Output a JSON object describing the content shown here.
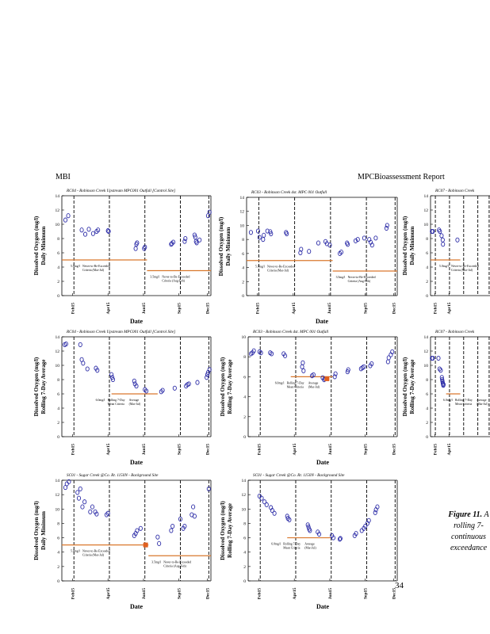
{
  "header": {
    "left": "MBI",
    "right": "MPCBioassessment Report"
  },
  "page_number": "34",
  "caption": {
    "figure_label": "Figure 11.",
    "lines": [
      "A",
      "rolling 7-",
      "continuous",
      "exceedance"
    ]
  },
  "chart_data": [
    {
      "type": "scatter",
      "title": "RC04 - Robinson Creek Upstream MPC001 Outfall [Control Site]",
      "ylabel_line1": "Dissolved Oxygen (mg/l)",
      "ylabel_line2": "Daily Minimum",
      "xlabel": "Date",
      "x_tick_labels": [
        "Feb15",
        "Apr15",
        "Jun15",
        "Sep15",
        "Dec15"
      ],
      "ylim": [
        0,
        14
      ],
      "y_ticks": [
        "0",
        "2",
        "4",
        "6",
        "8",
        "10",
        "12",
        "14"
      ],
      "series": [
        {
          "name": "DO",
          "x": [
            0.5,
            0.9,
            2.8,
            3.3,
            3.8,
            4.4,
            4.9,
            5.1,
            6.5,
            6.6,
            10.4,
            10.5,
            10.6,
            11.6,
            11.7,
            15.4,
            15.5,
            15.7,
            17.3,
            17.4,
            18.7,
            18.8,
            18.9,
            19.0,
            19.4,
            20.6,
            20.8,
            20.9
          ],
          "y": [
            10.6,
            11.2,
            9.2,
            8.6,
            9.3,
            8.7,
            9.0,
            9.2,
            9.1,
            9.0,
            6.6,
            7.2,
            7.4,
            6.6,
            6.8,
            7.2,
            7.3,
            7.5,
            7.6,
            8.0,
            8.5,
            8.2,
            7.6,
            7.4,
            7.8,
            11.2,
            11.7,
            11.9
          ]
        }
      ],
      "threshold_lines": [
        {
          "x": [
            0.0,
            12.0
          ],
          "y": 5.0,
          "label_line1": "5.0mg/l",
          "label_line2": "Never-to-Be-Exceeded",
          "label_line3": "Criteria (Mar-Jul)"
        },
        {
          "x": [
            12.0,
            21.0
          ],
          "y": 3.5,
          "label_line1": "3.5mg/l",
          "label_line2": "Never-to-Be-Exceeded",
          "label_line3": "Criteria (Aug-Feb)"
        }
      ],
      "flags": []
    },
    {
      "type": "scatter",
      "title": "RC03 - Robinson Creek dst. MPC 001 Outfall",
      "ylabel_line1": "Dissolved Oxygen (mg/l)",
      "ylabel_line2": "Daily Minimum",
      "xlabel": "Date",
      "x_tick_labels": [
        "Feb15",
        "Apr15",
        "Jun15",
        "Sep15",
        "Dec15"
      ],
      "ylim": [
        0,
        14
      ],
      "y_ticks": [
        "0",
        "2",
        "4",
        "6",
        "8",
        "10",
        "12",
        "14"
      ],
      "series": [
        {
          "name": "DO",
          "x": [
            0.6,
            1.6,
            1.8,
            2.3,
            2.4,
            2.9,
            3.3,
            3.4,
            5.5,
            5.6,
            7.5,
            7.6,
            8.7,
            10.0,
            11.0,
            11.2,
            11.6,
            13.0,
            13.2,
            14.0,
            14.1,
            15.2,
            15.5,
            16.4,
            17.1,
            17.3,
            17.5,
            18.0,
            19.5,
            19.6
          ],
          "y": [
            9.0,
            9.2,
            8.3,
            8.0,
            8.6,
            9.2,
            9.1,
            8.8,
            9.0,
            8.8,
            6.1,
            6.6,
            6.3,
            7.5,
            7.7,
            7.4,
            7.2,
            6.0,
            6.2,
            7.5,
            7.3,
            7.8,
            8.0,
            8.2,
            8.0,
            7.6,
            7.2,
            8.2,
            9.6,
            10.0
          ],
          "note": "approximate"
        }
      ],
      "threshold_lines": [
        {
          "x": [
            0.0,
            12.0
          ],
          "y": 5.0,
          "label_line1": "5.0mg/l",
          "label_line2": "Never-to-Be-Exceeded",
          "label_line3": "Criteria (Mar-Jul)"
        },
        {
          "x": [
            12.0,
            21.0
          ],
          "y": 3.5,
          "label_line1": "3.5mg/l",
          "label_line2": "Never-to-Be-Exceeded",
          "label_line3": "Criteria (Aug-Feb)"
        }
      ],
      "flags": []
    },
    {
      "type": "scatter",
      "title": "RC07 - Robinson Creek",
      "ylabel_line1": "Dissolved Oxygen (mg/l)",
      "ylabel_line2": "Daily Minimum",
      "xlabel": "",
      "x_tick_labels": [
        "Feb15",
        "Apr15"
      ],
      "ylim": [
        0,
        14
      ],
      "y_ticks": [
        "0",
        "2",
        "4",
        "6",
        "8",
        "10",
        "12",
        "14"
      ],
      "series": [
        {
          "name": "DO",
          "x": [
            0.5,
            0.8,
            3.0,
            3.3,
            3.9,
            4.3,
            4.4,
            9.5
          ],
          "y": [
            9.0,
            9.0,
            9.2,
            9.0,
            8.4,
            7.8,
            7.2,
            7.8
          ]
        }
      ],
      "threshold_lines": [
        {
          "x": [
            0.0,
            10.5
          ],
          "y": 5.0,
          "label_line1": "5.0mg/l",
          "label_line2": "Never-to-Be-Exceeded",
          "label_line3": "Criteria (Mar-Jul)"
        }
      ],
      "flags": []
    },
    {
      "type": "scatter",
      "title": "RC04 - Robinson Creek Upstream MPC001 Outfall [Control Site]",
      "ylabel_line1": "Dissolved Oxygen (mg/l)",
      "ylabel_line2": "Rolling 7-Day Average",
      "xlabel": "Date",
      "x_tick_labels": [
        "Feb15",
        "Apr15",
        "Jun15",
        "Sep15",
        "Dec15"
      ],
      "ylim": [
        0,
        14
      ],
      "y_ticks": [
        "0",
        "2",
        "4",
        "6",
        "8",
        "10",
        "12",
        "14"
      ],
      "series": [
        {
          "name": "DO",
          "x": [
            0.4,
            0.6,
            2.6,
            2.8,
            3.0,
            3.6,
            4.8,
            5.0,
            7.0,
            7.1,
            7.2,
            10.2,
            10.3,
            10.5,
            11.7,
            11.9,
            14.0,
            14.2,
            15.9,
            17.5,
            17.7,
            17.9,
            19.1,
            20.4,
            20.5,
            20.6,
            20.8
          ],
          "y": [
            12.9,
            13.0,
            12.9,
            10.8,
            10.3,
            9.5,
            9.6,
            9.3,
            8.7,
            8.3,
            8.0,
            7.8,
            7.4,
            7.1,
            6.6,
            6.4,
            6.3,
            6.5,
            6.8,
            7.1,
            7.3,
            7.4,
            7.6,
            8.3,
            8.7,
            9.0,
            9.4
          ]
        }
      ],
      "threshold_lines": [
        {
          "x": [
            7.0,
            13.5
          ],
          "y": 6.0,
          "label_line1": "6.0mg/l",
          "label_line2": "Rolling 7-Day",
          "label_line3": "Mean Criteria",
          "label2_line1": "Average",
          "label2_line2": "(Mar-Jul)"
        }
      ],
      "flags": []
    },
    {
      "type": "scatter",
      "title": "RC03 - Robinson Creek dst. MPC 001 Outfall",
      "ylabel_line1": "Dissolved Oxygen (mg/l)",
      "ylabel_line2": "Rolling 7-Day Average",
      "xlabel": "Date",
      "x_tick_labels": [
        "Feb15",
        "Apr15",
        "Jun15",
        "Sep15",
        "Dec15"
      ],
      "ylim": [
        0,
        10
      ],
      "y_ticks": [
        "0",
        "2",
        "4",
        "6",
        "8",
        "10"
      ],
      "series": [
        {
          "name": "DO",
          "x": [
            0.4,
            0.6,
            0.8,
            1.6,
            1.8,
            3.1,
            3.3,
            5.0,
            5.2,
            7.6,
            7.7,
            7.8,
            9.0,
            9.2,
            10.5,
            10.7,
            10.8,
            12.2,
            12.3,
            14.0,
            14.1,
            15.9,
            16.1,
            16.3,
            17.2,
            17.4,
            19.7,
            19.8,
            20.1,
            20.3
          ],
          "y": [
            8.3,
            8.4,
            8.6,
            8.5,
            8.4,
            8.4,
            8.3,
            8.3,
            8.1,
            7.0,
            7.4,
            6.6,
            6.1,
            6.2,
            5.9,
            5.7,
            5.8,
            6.0,
            6.3,
            6.5,
            6.7,
            6.8,
            6.9,
            7.0,
            7.1,
            7.3,
            7.5,
            7.9,
            8.2,
            8.5
          ]
        }
      ],
      "threshold_lines": [
        {
          "x": [
            6.0,
            12.0
          ],
          "y": 6.0,
          "label_line1": "6.0mg/l",
          "label_line2": "Rolling 7-Day",
          "label_line3": "Mean Criteria",
          "label2_line1": "Average",
          "label2_line2": "(Mar-Jul)"
        }
      ],
      "flags": [
        {
          "x": 11.1,
          "y": 5.8,
          "color": "#e06020"
        }
      ]
    },
    {
      "type": "scatter",
      "title": "RC07 - Robinson Creek",
      "ylabel_line1": "Dissolved Oxygen (mg/l)",
      "ylabel_line2": "Rolling 7-Day Average",
      "xlabel": "",
      "x_tick_labels": [
        "Feb15",
        "Apr15"
      ],
      "ylim": [
        0,
        14
      ],
      "y_ticks": [
        "0",
        "2",
        "4",
        "6",
        "8",
        "10",
        "12",
        "14"
      ],
      "series": [
        {
          "name": "DO",
          "x": [
            0.5,
            0.8,
            2.8,
            3.2,
            3.6,
            4.0,
            4.1,
            4.2,
            4.3,
            4.4,
            4.5,
            4.6
          ],
          "y": [
            11.0,
            11.0,
            11.0,
            9.5,
            9.3,
            8.3,
            8.0,
            7.8,
            7.6,
            7.4,
            7.2,
            7.3
          ]
        }
      ],
      "threshold_lines": [
        {
          "x": [
            5.5,
            10.5
          ],
          "y": 6.0,
          "label_line1": "6.0mg/l",
          "label_line2": "Rolling 7-Day",
          "label_line3": "Mean Criteria",
          "label2_line1": "Average",
          "label2_line2": "(Mar-Jul)"
        }
      ],
      "flags": []
    },
    {
      "type": "scatter",
      "title": "SC01 - Sugar Creek @Co. Rt. 1150N - Background Site",
      "ylabel_line1": "Dissolved Oxygen (mg/l)",
      "ylabel_line2": "Daily Minimum",
      "xlabel": "Date",
      "x_tick_labels": [
        "Feb15",
        "Apr15",
        "Jun15",
        "Sep15",
        "Dec15"
      ],
      "ylim": [
        0,
        14
      ],
      "y_ticks": [
        "0",
        "2",
        "4",
        "6",
        "8",
        "10",
        "12",
        "14"
      ],
      "series": [
        {
          "name": "DO",
          "x": [
            0.5,
            0.7,
            1.0,
            2.2,
            2.4,
            2.6,
            2.9,
            3.2,
            4.0,
            4.3,
            4.7,
            4.9,
            6.3,
            6.5,
            10.2,
            10.4,
            10.6,
            11.1,
            13.5,
            13.7,
            15.4,
            15.6,
            16.7,
            17.1,
            17.3,
            18.3,
            18.5,
            18.7,
            20.7,
            20.9,
            21.0,
            21.2
          ],
          "y": [
            13.0,
            13.5,
            13.8,
            12.3,
            11.5,
            12.8,
            10.3,
            11.0,
            9.6,
            10.3,
            9.6,
            9.3,
            9.2,
            9.4,
            6.3,
            6.6,
            7.0,
            7.3,
            6.1,
            5.2,
            7.0,
            7.6,
            8.6,
            7.3,
            7.6,
            9.2,
            10.3,
            9.0,
            12.8,
            13.3,
            13.8,
            12.5
          ]
        }
      ],
      "threshold_lines": [
        {
          "x": [
            0.0,
            12.2
          ],
          "y": 5.0,
          "label_line1": "5.0mg/l",
          "label_line2": "Never-to-Be-Exceeded",
          "label_line3": "Criteria (Mar-Jul)"
        },
        {
          "x": [
            12.2,
            21.0
          ],
          "y": 3.5,
          "label_line1": "3.5mg/l",
          "label_line2": "Never-to-Be-Exceeded",
          "label_line3": "Criteria (Aug-Feb)"
        }
      ],
      "flags": [
        {
          "x": 11.8,
          "y": 5.0,
          "color": "#e06020"
        }
      ]
    },
    {
      "type": "scatter",
      "title": "SC01 - Sugar Creek @Co. Rt. 1150N - Background Site",
      "ylabel_line1": "Dissolved Oxygen (mg/l)",
      "ylabel_line2": "Rolling 7-Day Average",
      "xlabel": "Date",
      "x_tick_labels": [
        "Feb15",
        "Apr15",
        "Jun15",
        "Sep15",
        "Dec15"
      ],
      "ylim": [
        0,
        14
      ],
      "y_ticks": [
        "0",
        "2",
        "4",
        "6",
        "8",
        "10",
        "12",
        "14"
      ],
      "series": [
        {
          "name": "DO",
          "x": [
            1.6,
            1.9,
            2.3,
            2.6,
            3.2,
            3.4,
            3.7,
            5.5,
            5.6,
            5.8,
            8.4,
            8.5,
            8.6,
            8.7,
            9.8,
            10.0,
            11.8,
            12.0,
            12.9,
            13.0,
            15.0,
            15.2,
            16.0,
            16.3,
            16.5,
            16.8,
            17.0,
            17.9,
            18.0,
            18.2
          ],
          "y": [
            11.8,
            11.5,
            11.0,
            10.6,
            10.2,
            9.8,
            9.4,
            9.0,
            8.7,
            8.5,
            7.8,
            7.5,
            7.2,
            7.0,
            6.8,
            6.5,
            6.3,
            6.0,
            5.8,
            5.9,
            6.3,
            6.6,
            7.0,
            7.3,
            7.6,
            8.0,
            8.4,
            9.5,
            9.9,
            10.3
          ]
        }
      ],
      "threshold_lines": [
        {
          "x": [
            5.5,
            11.6
          ],
          "y": 6.0,
          "label_line1": "6.0mg/l",
          "label_line2": "Rolling 7-Day",
          "label_line3": "Mean Criteria",
          "label2_line1": "Average",
          "label2_line2": "(Mar-Jul)"
        }
      ],
      "flags": []
    }
  ]
}
